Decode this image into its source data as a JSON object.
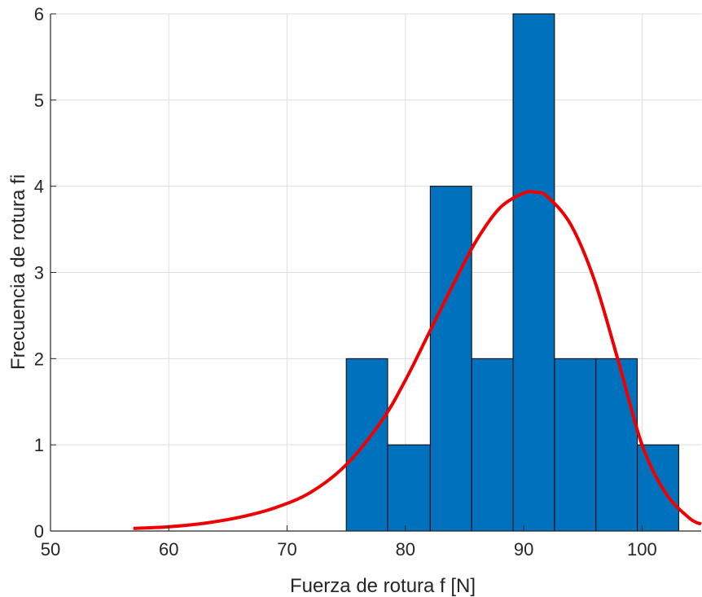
{
  "chart_data": {
    "type": "bar",
    "subtype": "histogram-with-fitted-curve",
    "title": "",
    "xlabel": "Fuerza de rotura f [N]",
    "ylabel": "Frecuencia de rotura fi",
    "xlim": [
      50,
      105
    ],
    "ylim": [
      0,
      6
    ],
    "x_ticks": [
      50,
      60,
      70,
      80,
      90,
      100
    ],
    "y_ticks": [
      0,
      1,
      2,
      3,
      4,
      5,
      6
    ],
    "grid": true,
    "legend": "none",
    "bins": [
      {
        "start": 75.0,
        "end": 78.5,
        "count": 2
      },
      {
        "start": 78.5,
        "end": 82.1,
        "count": 1
      },
      {
        "start": 82.1,
        "end": 85.6,
        "count": 4
      },
      {
        "start": 85.6,
        "end": 89.1,
        "count": 2
      },
      {
        "start": 89.1,
        "end": 92.6,
        "count": 6
      },
      {
        "start": 92.6,
        "end": 96.1,
        "count": 2
      },
      {
        "start": 96.1,
        "end": 99.6,
        "count": 2
      },
      {
        "start": 99.6,
        "end": 103.1,
        "count": 1
      }
    ],
    "curve": {
      "color": "#ee0000",
      "x": [
        57,
        60,
        63,
        66,
        69,
        72,
        75,
        78,
        80,
        82,
        84,
        86,
        88,
        90,
        91,
        92,
        94,
        96,
        98,
        100,
        102,
        104,
        105
      ],
      "y": [
        0.03,
        0.05,
        0.09,
        0.16,
        0.27,
        0.45,
        0.77,
        1.28,
        1.75,
        2.3,
        2.85,
        3.37,
        3.75,
        3.92,
        3.93,
        3.88,
        3.55,
        2.9,
        1.97,
        1.0,
        0.44,
        0.15,
        0.08
      ]
    },
    "bar_color": "#0072bd",
    "bar_edge_color": "#000000",
    "grid_color": "#dedede"
  }
}
